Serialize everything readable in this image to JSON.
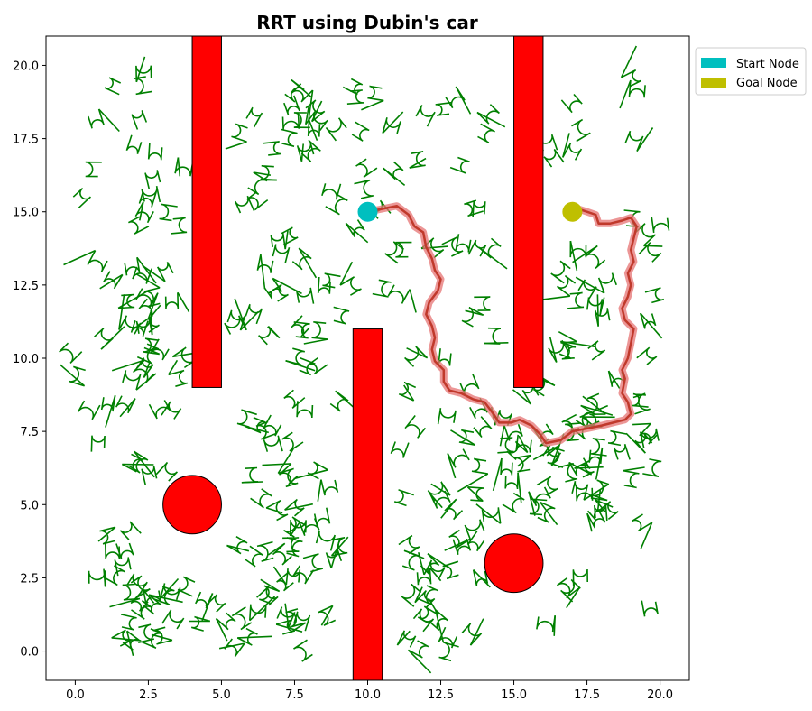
{
  "chart_data": {
    "type": "scatter",
    "title": "RRT using Dubin's car",
    "xlabel": "",
    "ylabel": "",
    "xlim": [
      -1,
      21
    ],
    "ylim": [
      -1,
      21
    ],
    "x_ticks": [
      0.0,
      2.5,
      5.0,
      7.5,
      10.0,
      12.5,
      15.0,
      17.5,
      20.0
    ],
    "y_ticks": [
      0.0,
      2.5,
      5.0,
      7.5,
      10.0,
      12.5,
      15.0,
      17.5,
      20.0
    ],
    "x_tick_labels": [
      "0.0",
      "2.5",
      "5.0",
      "7.5",
      "10.0",
      "12.5",
      "15.0",
      "17.5",
      "20.0"
    ],
    "y_tick_labels": [
      "0.0",
      "2.5",
      "5.0",
      "7.5",
      "10.0",
      "12.5",
      "15.0",
      "17.5",
      "20.0"
    ],
    "grid": false,
    "legend_position": "outside top-right",
    "legend": [
      {
        "label": "Start Node",
        "color": "#00bfbf"
      },
      {
        "label": "Goal Node",
        "color": "#bfbf00"
      }
    ],
    "obstacles": {
      "rectangles": [
        {
          "x": 4,
          "y": 9,
          "width": 1,
          "height": 12
        },
        {
          "x": 9.5,
          "y": -1,
          "width": 1,
          "height": 12
        },
        {
          "x": 15,
          "y": 9,
          "width": 1,
          "height": 12
        }
      ],
      "circles": [
        {
          "cx": 4,
          "cy": 5,
          "r": 1
        },
        {
          "cx": 15,
          "cy": 3,
          "r": 1
        }
      ],
      "color": "#ff0000"
    },
    "start_node": {
      "x": 10,
      "y": 15,
      "color": "#00bfbf"
    },
    "goal_node": {
      "x": 17,
      "y": 15,
      "color": "#bfbf00"
    },
    "tree_color": "#008000",
    "path_color": "#c0392b",
    "path": [
      [
        10.0,
        15.0
      ],
      [
        10.5,
        15.1
      ],
      [
        11.0,
        15.2
      ],
      [
        11.4,
        14.9
      ],
      [
        11.6,
        14.5
      ],
      [
        11.9,
        14.3
      ],
      [
        12.0,
        13.8
      ],
      [
        12.2,
        13.4
      ],
      [
        12.3,
        13.0
      ],
      [
        12.5,
        12.7
      ],
      [
        12.4,
        12.3
      ],
      [
        12.1,
        11.9
      ],
      [
        12.0,
        11.5
      ],
      [
        12.2,
        11.1
      ],
      [
        12.3,
        10.7
      ],
      [
        12.2,
        10.3
      ],
      [
        12.3,
        9.9
      ],
      [
        12.6,
        9.6
      ],
      [
        12.6,
        9.2
      ],
      [
        12.8,
        8.9
      ],
      [
        13.2,
        8.8
      ],
      [
        13.6,
        8.6
      ],
      [
        14.0,
        8.5
      ],
      [
        14.3,
        8.1
      ],
      [
        14.5,
        7.8
      ],
      [
        14.9,
        7.8
      ],
      [
        15.2,
        7.9
      ],
      [
        15.6,
        7.7
      ],
      [
        15.9,
        7.4
      ],
      [
        16.1,
        7.1
      ],
      [
        16.6,
        7.2
      ],
      [
        17.0,
        7.5
      ],
      [
        17.5,
        7.6
      ],
      [
        18.0,
        7.7
      ],
      [
        18.4,
        7.8
      ],
      [
        18.8,
        7.9
      ],
      [
        19.0,
        8.1
      ],
      [
        18.9,
        8.5
      ],
      [
        18.7,
        8.8
      ],
      [
        18.8,
        9.3
      ],
      [
        18.7,
        9.6
      ],
      [
        18.9,
        10.0
      ],
      [
        19.0,
        10.5
      ],
      [
        19.1,
        11.0
      ],
      [
        18.8,
        11.3
      ],
      [
        18.7,
        11.7
      ],
      [
        18.9,
        12.1
      ],
      [
        19.0,
        12.5
      ],
      [
        18.9,
        12.9
      ],
      [
        19.1,
        13.3
      ],
      [
        19.0,
        13.7
      ],
      [
        19.1,
        14.1
      ],
      [
        19.2,
        14.5
      ],
      [
        19.0,
        14.8
      ],
      [
        18.7,
        14.7
      ],
      [
        18.3,
        14.6
      ],
      [
        17.9,
        14.6
      ],
      [
        17.8,
        14.9
      ],
      [
        17.5,
        15.0
      ],
      [
        17.2,
        15.1
      ],
      [
        17.0,
        15.0
      ]
    ]
  }
}
